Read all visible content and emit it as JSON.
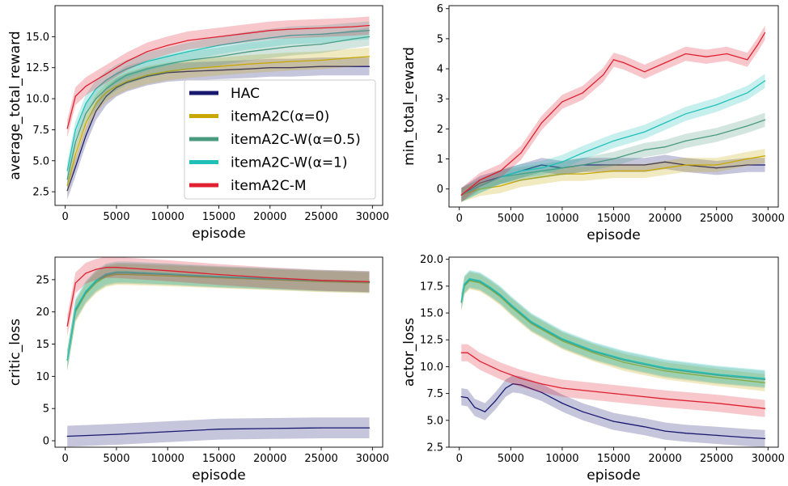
{
  "chart_data": [
    {
      "type": "line",
      "ylabel": "average_total_reward",
      "xlabel": "episode",
      "xlim": [
        -1000,
        31000
      ],
      "ylim": [
        1.4,
        17.5
      ],
      "xticks": [
        0,
        5000,
        10000,
        15000,
        20000,
        25000,
        30000
      ],
      "yticks": [
        2.5,
        5.0,
        7.5,
        10.0,
        12.5,
        15.0
      ],
      "ytick_labels": [
        "2.5",
        "5.0",
        "7.5",
        "10.0",
        "12.5",
        "15.0"
      ],
      "legend": "lower right",
      "series": [
        {
          "name": "HAC",
          "color": "#191970",
          "x": [
            200,
            1000,
            2000,
            3000,
            4000,
            5000,
            6000,
            8000,
            10000,
            12000,
            15000,
            18000,
            20000,
            22000,
            25000,
            28000,
            29700
          ],
          "values": [
            2.6,
            4.5,
            7.0,
            9.0,
            10.2,
            10.9,
            11.3,
            11.8,
            12.1,
            12.2,
            12.3,
            12.4,
            12.5,
            12.5,
            12.6,
            12.6,
            12.6
          ]
        },
        {
          "name": "itemA2C(α=0)",
          "color": "#c8a800",
          "x": [
            200,
            1000,
            2000,
            3000,
            4000,
            5000,
            6000,
            8000,
            10000,
            12000,
            15000,
            18000,
            20000,
            22000,
            25000,
            28000,
            29700
          ],
          "values": [
            3.0,
            5.5,
            8.0,
            9.6,
            10.5,
            11.0,
            11.4,
            11.9,
            12.2,
            12.4,
            12.6,
            12.8,
            12.9,
            13.0,
            13.1,
            13.3,
            13.4
          ]
        },
        {
          "name": "itemA2C-W(α=0.5)",
          "color": "#4a9a80",
          "x": [
            200,
            1000,
            2000,
            3000,
            4000,
            5000,
            6000,
            8000,
            10000,
            12000,
            15000,
            18000,
            20000,
            22000,
            25000,
            28000,
            29700
          ],
          "values": [
            3.5,
            6.5,
            8.8,
            10.0,
            10.8,
            11.4,
            11.9,
            12.4,
            12.8,
            13.1,
            13.4,
            13.8,
            14.0,
            14.2,
            14.4,
            14.8,
            15.0
          ]
        },
        {
          "name": "itemA2C-W(α=1)",
          "color": "#20c0b8",
          "x": [
            200,
            1000,
            2000,
            3000,
            4000,
            5000,
            6000,
            8000,
            10000,
            12000,
            15000,
            18000,
            20000,
            22000,
            25000,
            28000,
            29700
          ],
          "values": [
            4.2,
            7.5,
            9.6,
            10.8,
            11.5,
            12.0,
            12.4,
            13.0,
            13.4,
            13.8,
            14.3,
            14.7,
            14.9,
            15.1,
            15.2,
            15.4,
            15.5
          ]
        },
        {
          "name": "itemA2C-M",
          "color": "#e02030",
          "x": [
            200,
            1000,
            2000,
            3000,
            4000,
            5000,
            6000,
            8000,
            10000,
            12000,
            15000,
            18000,
            20000,
            22000,
            25000,
            28000,
            29700
          ],
          "values": [
            7.6,
            10.2,
            11.0,
            11.5,
            12.0,
            12.5,
            13.0,
            13.8,
            14.3,
            14.7,
            15.0,
            15.3,
            15.5,
            15.6,
            15.7,
            15.8,
            15.9
          ]
        }
      ]
    },
    {
      "type": "line",
      "ylabel": "min_total_reward",
      "xlabel": "episode",
      "xlim": [
        -1000,
        31000
      ],
      "ylim": [
        -0.6,
        6.1
      ],
      "xticks": [
        0,
        5000,
        10000,
        15000,
        20000,
        25000,
        30000
      ],
      "yticks": [
        0,
        1,
        2,
        3,
        4,
        5,
        6
      ],
      "ytick_labels": [
        "0",
        "1",
        "2",
        "3",
        "4",
        "5",
        "6"
      ],
      "series": [
        {
          "name": "HAC",
          "color": "#191970",
          "x": [
            200,
            2000,
            4000,
            6000,
            8000,
            10000,
            12000,
            15000,
            18000,
            20000,
            22000,
            25000,
            28000,
            29700
          ],
          "values": [
            -0.2,
            0.2,
            0.4,
            0.6,
            0.8,
            0.7,
            0.8,
            0.8,
            0.8,
            0.9,
            0.8,
            0.7,
            0.8,
            0.8
          ]
        },
        {
          "name": "itemA2C(α=0)",
          "color": "#c8a800",
          "x": [
            200,
            2000,
            4000,
            6000,
            8000,
            10000,
            12000,
            15000,
            18000,
            20000,
            22000,
            25000,
            28000,
            29700
          ],
          "values": [
            -0.2,
            0.0,
            0.1,
            0.3,
            0.4,
            0.5,
            0.5,
            0.6,
            0.6,
            0.7,
            0.8,
            0.8,
            1.0,
            1.1
          ]
        },
        {
          "name": "itemA2C-W(α=0.5)",
          "color": "#4a9a80",
          "x": [
            200,
            2000,
            4000,
            6000,
            8000,
            10000,
            12000,
            15000,
            18000,
            20000,
            22000,
            25000,
            28000,
            29700
          ],
          "values": [
            -0.2,
            0.1,
            0.4,
            0.5,
            0.6,
            0.7,
            0.8,
            1.0,
            1.3,
            1.4,
            1.6,
            1.8,
            2.1,
            2.3
          ]
        },
        {
          "name": "itemA2C-W(α=1)",
          "color": "#20c0b8",
          "x": [
            200,
            2000,
            4000,
            6000,
            8000,
            10000,
            12000,
            15000,
            18000,
            20000,
            22000,
            25000,
            28000,
            29700
          ],
          "values": [
            -0.2,
            0.1,
            0.4,
            0.6,
            0.7,
            0.9,
            1.2,
            1.6,
            1.9,
            2.2,
            2.5,
            2.8,
            3.2,
            3.6
          ]
        },
        {
          "name": "itemA2C-M",
          "color": "#e02030",
          "x": [
            200,
            2000,
            4000,
            6000,
            8000,
            10000,
            12000,
            14000,
            15000,
            16000,
            18000,
            20000,
            22000,
            24000,
            26000,
            28000,
            29000,
            29700
          ],
          "values": [
            -0.2,
            0.3,
            0.6,
            1.2,
            2.2,
            2.9,
            3.2,
            3.8,
            4.3,
            4.2,
            3.9,
            4.2,
            4.5,
            4.4,
            4.5,
            4.3,
            4.8,
            5.2
          ]
        }
      ]
    },
    {
      "type": "line",
      "ylabel": "critic_loss",
      "xlabel": "episode",
      "xlim": [
        -1000,
        31000
      ],
      "ylim": [
        -1.0,
        28.5
      ],
      "xticks": [
        0,
        5000,
        10000,
        15000,
        20000,
        25000,
        30000
      ],
      "yticks": [
        0,
        5,
        10,
        15,
        20,
        25
      ],
      "ytick_labels": [
        "0",
        "5",
        "10",
        "15",
        "20",
        "25"
      ],
      "series": [
        {
          "name": "HAC",
          "color": "#191970",
          "x": [
            200,
            5000,
            10000,
            15000,
            20000,
            25000,
            29700
          ],
          "values": [
            0.7,
            1.0,
            1.4,
            1.8,
            1.9,
            2.0,
            2.0
          ]
        },
        {
          "name": "itemA2C(α=0)",
          "color": "#c8a800",
          "x": [
            200,
            1000,
            2000,
            3000,
            4000,
            5000,
            6000,
            10000,
            15000,
            20000,
            25000,
            29700
          ],
          "values": [
            12.5,
            20.0,
            22.8,
            24.5,
            25.5,
            25.8,
            25.8,
            25.6,
            25.3,
            25.0,
            24.7,
            24.5
          ]
        },
        {
          "name": "itemA2C-W(α=0.5)",
          "color": "#4a9a80",
          "x": [
            200,
            1000,
            2000,
            3000,
            4000,
            5000,
            6000,
            10000,
            15000,
            20000,
            25000,
            29700
          ],
          "values": [
            12.5,
            20.2,
            23.0,
            24.7,
            25.7,
            26.0,
            26.0,
            25.8,
            25.4,
            25.1,
            24.8,
            24.6
          ]
        },
        {
          "name": "itemA2C-W(α=1)",
          "color": "#20c0b8",
          "x": [
            200,
            1000,
            2000,
            3000,
            4000,
            5000,
            6000,
            10000,
            15000,
            20000,
            25000,
            29700
          ],
          "values": [
            12.5,
            20.5,
            23.2,
            24.9,
            25.9,
            26.2,
            26.2,
            25.9,
            25.5,
            25.2,
            24.9,
            24.7
          ]
        },
        {
          "name": "itemA2C-M",
          "color": "#e02030",
          "x": [
            200,
            1000,
            2000,
            3000,
            4000,
            5000,
            6000,
            10000,
            15000,
            20000,
            25000,
            29700
          ],
          "values": [
            17.8,
            24.5,
            26.0,
            26.6,
            26.9,
            26.9,
            26.8,
            26.4,
            25.8,
            25.3,
            24.9,
            24.7
          ]
        }
      ]
    },
    {
      "type": "line",
      "ylabel": "actor_loss",
      "xlabel": "episode",
      "xlim": [
        -1000,
        31000
      ],
      "ylim": [
        2.5,
        20.2
      ],
      "xticks": [
        0,
        5000,
        10000,
        15000,
        20000,
        25000,
        30000
      ],
      "yticks": [
        2.5,
        5.0,
        7.5,
        10.0,
        12.5,
        15.0,
        17.5,
        20.0
      ],
      "ytick_labels": [
        "2.5",
        "5.0",
        "7.5",
        "10.0",
        "12.5",
        "15.0",
        "17.5",
        "20.0"
      ],
      "series": [
        {
          "name": "HAC",
          "color": "#191970",
          "x": [
            200,
            800,
            1500,
            2500,
            3500,
            4500,
            5200,
            6000,
            8000,
            10000,
            12000,
            15000,
            18000,
            20000,
            22000,
            25000,
            28000,
            29700
          ],
          "values": [
            7.2,
            7.1,
            6.2,
            5.8,
            6.8,
            8.0,
            8.4,
            8.3,
            7.6,
            6.6,
            5.8,
            4.9,
            4.4,
            4.0,
            3.8,
            3.6,
            3.4,
            3.3
          ]
        },
        {
          "name": "itemA2C(α=0)",
          "color": "#c8a800",
          "x": [
            200,
            500,
            1000,
            2000,
            3000,
            4000,
            5000,
            7000,
            10000,
            13000,
            16000,
            20000,
            25000,
            29700
          ],
          "values": [
            16.0,
            17.5,
            18.0,
            17.8,
            17.2,
            16.5,
            15.6,
            14.0,
            12.4,
            11.3,
            10.4,
            9.6,
            9.0,
            8.5
          ]
        },
        {
          "name": "itemA2C-W(α=0.5)",
          "color": "#4a9a80",
          "x": [
            200,
            500,
            1000,
            2000,
            3000,
            4000,
            5000,
            7000,
            10000,
            13000,
            16000,
            20000,
            25000,
            29700
          ],
          "values": [
            16.0,
            17.6,
            18.1,
            17.9,
            17.3,
            16.6,
            15.7,
            14.1,
            12.5,
            11.4,
            10.6,
            9.8,
            9.2,
            8.8
          ]
        },
        {
          "name": "itemA2C-W(α=1)",
          "color": "#20c0b8",
          "x": [
            200,
            500,
            1000,
            2000,
            3000,
            4000,
            5000,
            7000,
            10000,
            13000,
            16000,
            20000,
            25000,
            29700
          ],
          "values": [
            16.1,
            17.7,
            18.2,
            18.0,
            17.4,
            16.7,
            15.8,
            14.2,
            12.6,
            11.5,
            10.7,
            9.9,
            9.3,
            8.9
          ]
        },
        {
          "name": "itemA2C-M",
          "color": "#e02030",
          "x": [
            200,
            800,
            2000,
            4000,
            6000,
            8000,
            10000,
            15000,
            20000,
            25000,
            29700
          ],
          "values": [
            11.3,
            11.3,
            10.5,
            9.6,
            8.9,
            8.4,
            8.0,
            7.5,
            7.0,
            6.6,
            6.1
          ]
        }
      ]
    }
  ]
}
